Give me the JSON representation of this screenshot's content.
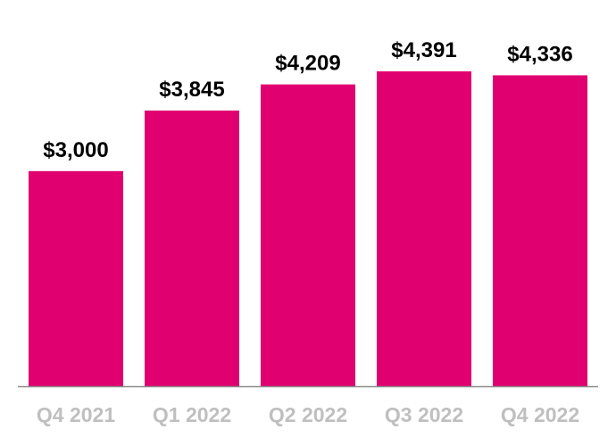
{
  "chart_data": {
    "type": "bar",
    "title": "",
    "xlabel": "",
    "ylabel": "",
    "categories": [
      "Q4 2021",
      "Q1 2022",
      "Q2 2022",
      "Q3 2022",
      "Q4 2022"
    ],
    "values": [
      3000,
      3845,
      4209,
      4391,
      4336
    ],
    "data_labels": [
      "$3,000",
      "$3,845",
      "$4,209",
      "$4,391",
      "$4,336"
    ],
    "ylim": [
      0,
      4391
    ],
    "grid": false,
    "legend": "none",
    "colors": {
      "bar": "#E0006F",
      "axis": "#8c8c8c",
      "tick_label": "#bfbfbf",
      "data_label": "#000000"
    }
  }
}
